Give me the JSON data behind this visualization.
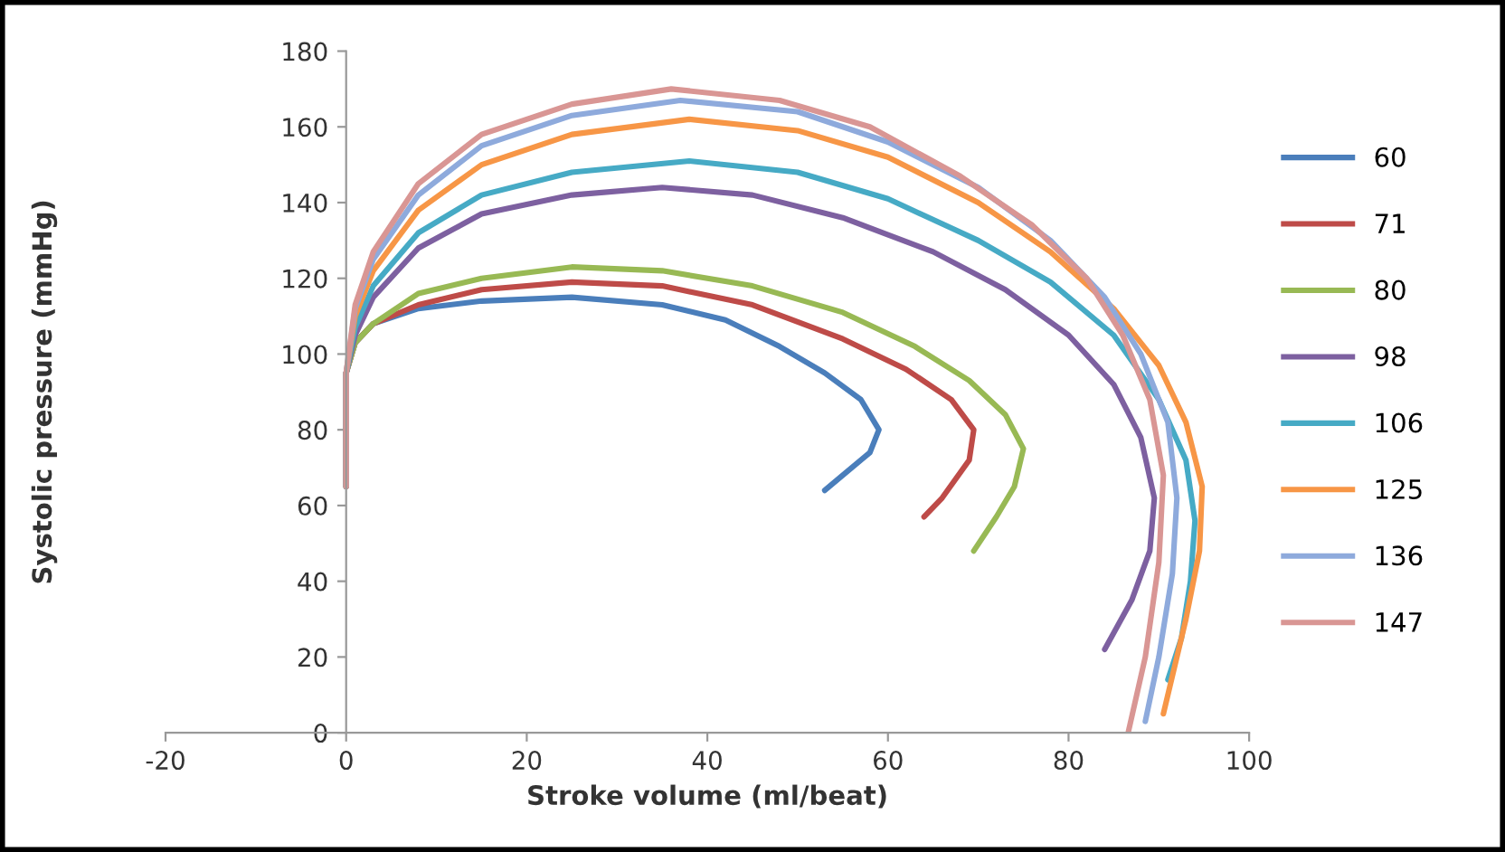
{
  "chart_data": {
    "type": "line",
    "xlabel": "Stroke volume (ml/beat)",
    "ylabel": "Systolic pressure (mmHg)",
    "xlim": [
      -20,
      100
    ],
    "xticks": [
      -20,
      0,
      20,
      40,
      60,
      80,
      100
    ],
    "ylim": [
      0,
      180
    ],
    "yticks": [
      0,
      20,
      40,
      60,
      80,
      100,
      120,
      140,
      160,
      180
    ],
    "grid": false,
    "legend": "right",
    "marker": "none",
    "line_style": "solid",
    "series": [
      {
        "name": "60",
        "color": "#4a7ebb",
        "x": [
          0,
          0,
          1,
          3,
          8,
          15,
          25,
          35,
          42,
          48,
          53,
          57,
          59,
          58,
          55,
          53
        ],
        "values": [
          65,
          95,
          103,
          108,
          112,
          114,
          115,
          113,
          109,
          102,
          95,
          88,
          80,
          74,
          68,
          64
        ]
      },
      {
        "name": "71",
        "color": "#be4b48",
        "x": [
          0,
          0,
          1,
          3,
          8,
          15,
          25,
          35,
          45,
          55,
          62,
          67,
          69.5,
          69,
          66,
          64
        ],
        "values": [
          65,
          95,
          103,
          108,
          113,
          117,
          119,
          118,
          113,
          104,
          96,
          88,
          80,
          72,
          62,
          57
        ]
      },
      {
        "name": "80",
        "color": "#98b954",
        "x": [
          0,
          0,
          1,
          3,
          8,
          15,
          25,
          35,
          45,
          55,
          63,
          69,
          73,
          75,
          74,
          72,
          69.5
        ],
        "values": [
          65,
          95,
          103,
          108,
          116,
          120,
          123,
          122,
          118,
          111,
          102,
          93,
          84,
          75,
          65,
          57,
          48
        ]
      },
      {
        "name": "98",
        "color": "#7d60a0",
        "x": [
          0,
          0,
          1,
          3,
          8,
          15,
          25,
          35,
          45,
          55,
          65,
          73,
          80,
          85,
          88,
          89.5,
          89,
          87,
          84
        ],
        "values": [
          65,
          95,
          105,
          115,
          128,
          137,
          142,
          144,
          142,
          136,
          127,
          117,
          105,
          92,
          78,
          62,
          48,
          35,
          22
        ]
      },
      {
        "name": "106",
        "color": "#46aac5",
        "x": [
          0,
          0,
          1,
          3,
          8,
          15,
          25,
          38,
          50,
          60,
          70,
          78,
          85,
          90,
          93,
          94,
          93.5,
          92.5,
          91
        ],
        "values": [
          65,
          95,
          107,
          118,
          132,
          142,
          148,
          151,
          148,
          141,
          130,
          119,
          105,
          88,
          72,
          56,
          40,
          25,
          14
        ]
      },
      {
        "name": "125",
        "color": "#f79646",
        "x": [
          0,
          0,
          1,
          3,
          8,
          15,
          25,
          38,
          50,
          60,
          70,
          78,
          85,
          90,
          93,
          94.8,
          94.5,
          93,
          91.5,
          90.5
        ],
        "values": [
          65,
          95,
          110,
          122,
          138,
          150,
          158,
          162,
          159,
          152,
          140,
          127,
          112,
          97,
          82,
          65,
          48,
          30,
          15,
          5
        ]
      },
      {
        "name": "136",
        "color": "#8eaadc",
        "x": [
          0,
          0,
          1,
          3,
          8,
          15,
          25,
          37,
          50,
          60,
          70,
          78,
          84,
          88,
          91,
          92,
          91.5,
          90,
          88.5
        ],
        "values": [
          65,
          95,
          112,
          125,
          142,
          155,
          163,
          167,
          164,
          156,
          144,
          130,
          115,
          100,
          82,
          62,
          42,
          20,
          3
        ]
      },
      {
        "name": "147",
        "color": "#d99694",
        "x": [
          0,
          0,
          1,
          3,
          8,
          15,
          25,
          36,
          48,
          58,
          68,
          76,
          82,
          86,
          89,
          90.5,
          90,
          88.5,
          86.6
        ],
        "values": [
          65,
          95,
          113,
          127,
          145,
          158,
          166,
          170,
          167,
          160,
          147,
          134,
          120,
          105,
          88,
          68,
          45,
          20,
          0
        ]
      }
    ]
  }
}
